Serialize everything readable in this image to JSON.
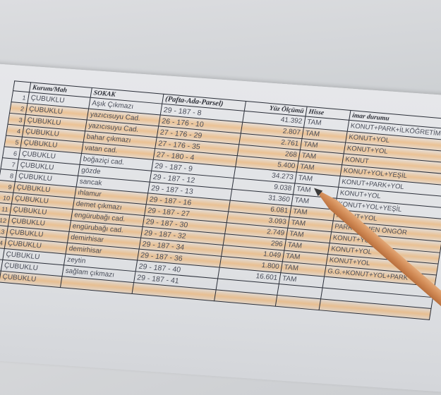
{
  "table": {
    "headers": [
      "",
      "Kurum/Mah",
      "SOKAK",
      "(Pafta-Ada-Parsel)",
      "Yüz Ölçümü",
      "Hisse",
      "imar durumu"
    ],
    "rows": [
      {
        "no": "1",
        "kurum": "ÇUBUKLU",
        "sokak": "Aşık Çıkmazı",
        "pafta": "29 - 187 - 8",
        "alan": "41.392",
        "hisse": "TAM",
        "imar": "KONUT+PARK+İLKÖĞRETİM T",
        "highlight": false
      },
      {
        "no": "2",
        "kurum": "ÇUBUKLU",
        "sokak": "yazıcısuyu Cad.",
        "pafta": "26 - 176 - 10",
        "alan": "2.807",
        "hisse": "TAM",
        "imar": "KONUT+YOL",
        "highlight": true
      },
      {
        "no": "3",
        "kurum": "ÇUBUKLU",
        "sokak": "yazıcısuyu Cad.",
        "pafta": "27 - 176 - 29",
        "alan": "2.761",
        "hisse": "TAM",
        "imar": "KONUT+YOL",
        "highlight": true
      },
      {
        "no": "4",
        "kurum": "ÇUBUKLU",
        "sokak": "bahar çıkmazı",
        "pafta": "27 - 176 - 35",
        "alan": "268",
        "hisse": "TAM",
        "imar": "KONUT",
        "highlight": true
      },
      {
        "no": "5",
        "kurum": "ÇUBUKLU",
        "sokak": "vatan cad.",
        "pafta": "27 - 180 - 4",
        "alan": "5.400",
        "hisse": "TAM",
        "imar": "KONUT+YOL+YEŞİL",
        "highlight": true
      },
      {
        "no": "6",
        "kurum": "ÇUBUKLU",
        "sokak": "boğaziçi cad.",
        "pafta": "29 - 187 - 9",
        "alan": "34.273",
        "hisse": "TAM",
        "imar": "KONUT+PARK+YOL",
        "highlight": false
      },
      {
        "no": "7",
        "kurum": "ÇUBUKLU",
        "sokak": "gözde",
        "pafta": "29 - 187 - 12",
        "alan": "9.038",
        "hisse": "TAM",
        "imar": "KONUT+YOL",
        "highlight": false
      },
      {
        "no": "8",
        "kurum": "ÇUBUKLU",
        "sokak": "sancak",
        "pafta": "29 - 187 - 13",
        "alan": "31.360",
        "hisse": "TAM",
        "imar": "KONUT+YOL+YEŞİL",
        "highlight": false
      },
      {
        "no": "9",
        "kurum": "ÇUBUKLU",
        "sokak": "ıhlamur",
        "pafta": "29 - 187 - 16",
        "alan": "6.081",
        "hisse": "TAM",
        "imar": "KONUT+YOL",
        "highlight": true
      },
      {
        "no": "10",
        "kurum": "ÇUBUKLU",
        "sokak": "demet çıkmazı",
        "pafta": "29 - 187 - 27",
        "alan": "3.093",
        "hisse": "TAM",
        "imar": "PARK KISMEN ÖNGÖR",
        "highlight": true
      },
      {
        "no": "11",
        "kurum": "ÇUBUKLU",
        "sokak": "engürubağı cad.",
        "pafta": "29 - 187 - 30",
        "alan": "2.749",
        "hisse": "TAM",
        "imar": "KONUT+YOL",
        "highlight": true
      },
      {
        "no": "12",
        "kurum": "ÇUBUKLU",
        "sokak": "engürubağı cad.",
        "pafta": "29 - 187 - 32",
        "alan": "296",
        "hisse": "TAM",
        "imar": "KONUT+YOL",
        "highlight": true
      },
      {
        "no": "13",
        "kurum": "ÇUBUKLU",
        "sokak": "demirhisar",
        "pafta": "29 - 187 - 34",
        "alan": "1.049",
        "hisse": "TAM",
        "imar": "KONUT+YOL",
        "highlight": true
      },
      {
        "no": "14",
        "kurum": "ÇUBUKLU",
        "sokak": "demirhisar",
        "pafta": "29 - 187 - 36",
        "alan": "1.800",
        "hisse": "TAM",
        "imar": "G.G.+KONUT+YOL+PARK",
        "highlight": true
      },
      {
        "no": "",
        "kurum": "ÇUBUKLU",
        "sokak": "zeytin",
        "pafta": "29 - 187 - 40",
        "alan": "16.601",
        "hisse": "TAM",
        "imar": "",
        "highlight": false
      },
      {
        "no": "",
        "kurum": "ÇUBUKLU",
        "sokak": "sağlam çıkmazı",
        "pafta": "29 - 187 - 41",
        "alan": "",
        "hisse": "",
        "imar": "",
        "highlight": false
      },
      {
        "no": "",
        "kurum": "ÇUBUKLU",
        "sokak": "",
        "pafta": "",
        "alan": "",
        "hisse": "",
        "imar": "",
        "highlight": true
      }
    ]
  },
  "colors": {
    "highlight": "#f0a550",
    "pencil": "#d18a55",
    "ink": "#2a2e38"
  }
}
